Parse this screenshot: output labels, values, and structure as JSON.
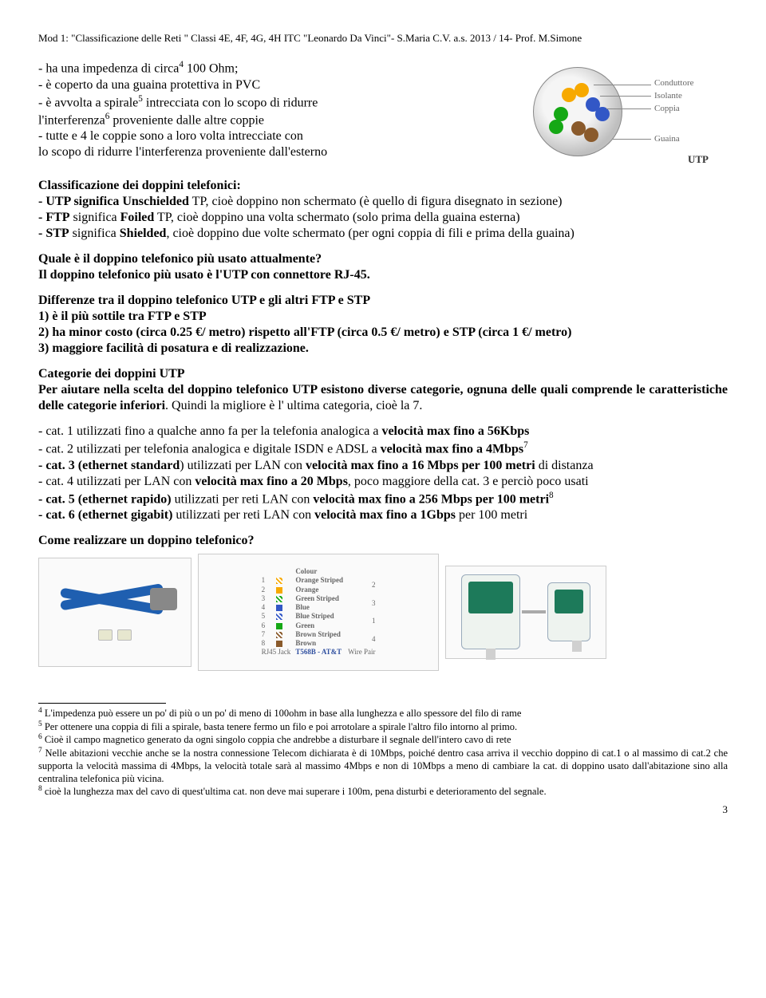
{
  "header": "Mod 1: \"Classificazione delle Reti \" Classi 4E, 4F, 4G, 4H ITC \"Leonardo Da Vinci\"- S.Maria C.V. a.s. 2013 / 14- Prof. M.Simone",
  "top": {
    "l1": "- ha una impedenza di circa",
    "l1b": " 100 Ohm;",
    "l2": "- è coperto da una guaina protettiva in PVC",
    "l3": "- è avvolta a spirale",
    "l3b": " intrecciata con lo scopo di ridurre",
    "l4": "l'interferenza",
    "l4b": " proveniente dalle altre coppie",
    "l5": "- tutte e 4 le coppie sono a loro volta intrecciate con",
    "l6": "lo scopo di ridurre l'interferenza proveniente dall'esterno"
  },
  "diagram": {
    "l1": "Conduttore",
    "l2": "Isolante",
    "l3": "Coppia",
    "l4": "Guaina",
    "utp": "UTP"
  },
  "class_title": "Classificazione dei doppini telefonici:",
  "class1a": "- UTP significa Unschielded",
  "class1b": " TP, cioè doppino non schermato (è quello di figura disegnato in sezione)",
  "class2a": "- FTP",
  "class2b": " significa ",
  "class2c": "Foiled",
  "class2d": " TP, cioè doppino una volta schermato (solo prima della guaina esterna)",
  "class3a": "- STP",
  "class3b": " significa ",
  "class3c": "Shielded",
  "class3d": ", cioè doppino due volte schermato (per ogni coppia di fili e prima della guaina)",
  "q1": "Quale è il doppino telefonico più usato attualmente?",
  "a1": "Il doppino telefonico più usato è l'UTP con connettore RJ-45.",
  "diff_t": "Differenze tra il doppino telefonico UTP e gli altri FTP e STP",
  "diff1": "1) è il più sottile tra FTP e STP",
  "diff2": "2) ha minor costo (circa 0.25 €/ metro) rispetto all'FTP (circa 0.5 €/ metro) e STP (circa 1 €/ metro)",
  "diff3": "3) maggiore facilità di posatura e di realizzazione.",
  "cat_t": "Categorie dei doppini UTP",
  "cat_p1": "Per aiutare nella scelta del doppino telefonico UTP esistono diverse categorie, ognuna delle quali comprende le caratteristiche delle categorie inferiori",
  "cat_p1b": ". Quindi la migliore è l' ultima categoria, cioè la 7.",
  "cat1a": "- cat. 1 utilizzati fino a qualche anno fa per la telefonia analogica a ",
  "cat1b": "velocità max fino a 56Kbps",
  "cat2a": "- cat. 2 utilizzati per telefonia analogica e digitale ISDN e ADSL a ",
  "cat2b": "velocità max fino a 4Mbps",
  "cat3a": "- cat. 3 (ethernet standard",
  "cat3b": ") utilizzati per LAN con ",
  "cat3c": "velocità max fino a 16 Mbps per 100 metri",
  "cat3d": " di distanza",
  "cat4a": "- cat. 4 utilizzati per LAN con ",
  "cat4b": "velocità max fino a 20 Mbps",
  "cat4c": ", poco maggiore della cat. 3 e perciò poco usati",
  "cat5a": "- cat. 5 (ethernet rapido)",
  "cat5b": " utilizzati per reti LAN con ",
  "cat5c": "velocità max fino a 256 Mbps per 100 metri",
  "cat6a": "- cat. 6 (ethernet gigabit)",
  "cat6b": " utilizzati per reti LAN con ",
  "cat6c": "velocità max fino a 1Gbps",
  "cat6d": " per 100 metri",
  "howto": "Come realizzare un doppino telefonico?",
  "pinout": {
    "title": "Colour",
    "rows": [
      {
        "n": "1",
        "c": "s-os",
        "name": "Orange Striped"
      },
      {
        "n": "2",
        "c": "s-o",
        "name": "Orange"
      },
      {
        "n": "3",
        "c": "s-gs",
        "name": "Green Striped"
      },
      {
        "n": "4",
        "c": "s-b",
        "name": "Blue"
      },
      {
        "n": "5",
        "c": "s-bs",
        "name": "Blue Striped"
      },
      {
        "n": "6",
        "c": "s-g",
        "name": "Green"
      },
      {
        "n": "7",
        "c": "s-brs",
        "name": "Brown Striped"
      },
      {
        "n": "8",
        "c": "s-br",
        "name": "Brown"
      }
    ],
    "jack": "RJ45 Jack",
    "std": "T568B - AT&T",
    "wp": "Wire Pair",
    "p1": "1",
    "p2": "2",
    "p3": "3",
    "p4": "4"
  },
  "fn4": " L'impedenza può essere un po' di più o un po' di meno di 100ohm in base alla lunghezza e allo spessore del filo di rame",
  "fn5": " Per ottenere una coppia di fili a spirale, basta tenere fermo un filo e poi arrotolare a spirale l'altro filo intorno al primo.",
  "fn6": " Cioè il campo magnetico generato da ogni singolo coppia che andrebbe a disturbare il segnale dell'intero cavo di rete",
  "fn7": " Nelle abitazioni vecchie anche se la nostra connessione Telecom dichiarata è di 10Mbps, poiché dentro casa arriva il vecchio doppino di cat.1 o al massimo di cat.2 che supporta la velocità massima di 4Mbps, la velocità totale sarà al massimo 4Mbps e non di 10Mbps a meno di cambiare la cat. di doppino usato dall'abitazione sino alla centralina telefonica più vicina.",
  "fn8": " cioè la lunghezza max del cavo di quest'ultima cat. non deve mai superare i 100m, pena disturbi e deterioramento del segnale.",
  "page": "3"
}
